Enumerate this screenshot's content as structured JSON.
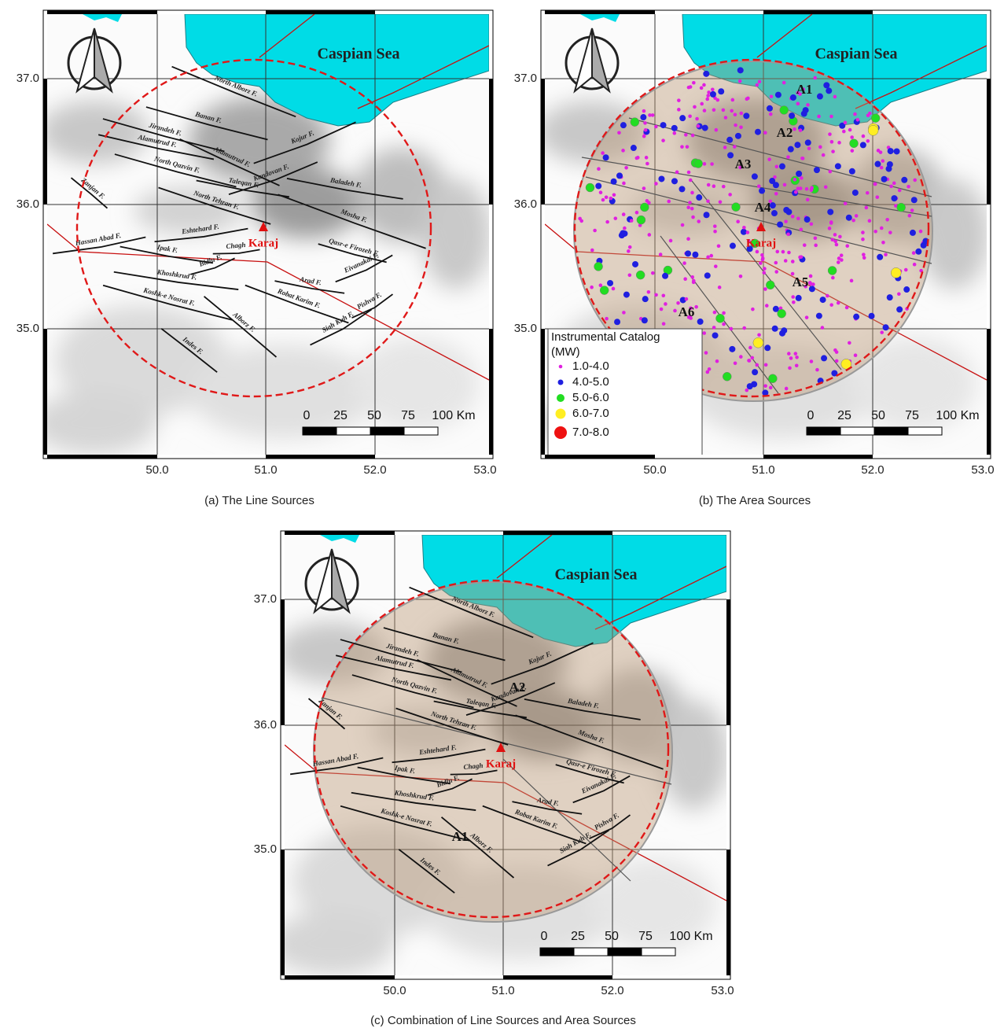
{
  "panels": [
    {
      "caption": "(a) The Line Sources",
      "sea_label": "Caspian Sea",
      "city": "Karaj",
      "lat_labels": [
        "37.0",
        "36.0",
        "35.0"
      ],
      "lon_labels": [
        "50.0",
        "51.0",
        "52.0",
        "53.0"
      ],
      "scale_labels": [
        "0",
        "25",
        "50",
        "75",
        "100 Km"
      ],
      "faults": [
        "North Alborz F.",
        "Banan F.",
        "Jirandeh F.",
        "Alamutrud F.",
        "Kojur F.",
        "Alamutrud F.",
        "North Qazvin F.",
        "Kandovan F.",
        "Taleqan F.",
        "Baladeh F.",
        "North Tehran F.",
        "Zanjan F.",
        "Mosha F.",
        "Eshtehard F.",
        "Hassan Abad F.",
        "Chagh",
        "Qasr-e Firozeh F.",
        "Ipak F.",
        "Bidlu F.",
        "Eivanakai F.",
        "Khoshkrud F.",
        "Arad F.",
        "Robat Karim F.",
        "Pishva F.",
        "Koshk-e Nosrat F.",
        "Siah Kuh F.",
        "Alborz F.",
        "Indes F."
      ]
    },
    {
      "caption": "(b) The Area Sources",
      "sea_label": "Caspian Sea",
      "city": "Karaj",
      "lat_labels": [
        "37.0",
        "36.0",
        "35.0"
      ],
      "lon_labels": [
        "50.0",
        "51.0",
        "52.0",
        "53.0"
      ],
      "scale_labels": [
        "0",
        "25",
        "50",
        "75",
        "100 Km"
      ],
      "area_labels": [
        "A1",
        "A2",
        "A3",
        "A4",
        "A5",
        "A6"
      ],
      "legend": {
        "title": "Instrumental Catalog",
        "unit": "(MW)",
        "items": [
          "1.0-4.0",
          "4.0-5.0",
          "5.0-6.0",
          "6.0-7.0",
          "7.0-8.0"
        ]
      }
    },
    {
      "caption": "(c) Combination of Line Sources and Area Sources",
      "sea_label": "Caspian Sea",
      "city": "Karaj",
      "lat_labels": [
        "37.0",
        "36.0",
        "35.0"
      ],
      "lon_labels": [
        "50.0",
        "51.0",
        "52.0",
        "53.0"
      ],
      "scale_labels": [
        "0",
        "25",
        "50",
        "75",
        "100 Km"
      ],
      "area_labels": [
        "A1",
        "A2"
      ],
      "faults": [
        "North Alborz F.",
        "Banan F.",
        "Jirandeh F.",
        "Alamutrud F.",
        "Kojur F.",
        "Alamutrud F.",
        "North Qazvin F.",
        "Kandovan F.",
        "Taleqan F.",
        "Baladeh F.",
        "North Tehran F.",
        "Zanjan F.",
        "Mosha F.",
        "Eshtehard F.",
        "Hassan Abad F.",
        "Chagh",
        "Qasr-e Firozeh F.",
        "Ipak F.",
        "Bidlu F.",
        "Eivanakai F.",
        "Khoshkrud F.",
        "Arad F.",
        "Robat Karim F.",
        "Pishva F.",
        "Koshk-e Nosrat F.",
        "Siah Kuh F.",
        "Alborz F.",
        "Indes F."
      ]
    }
  ]
}
